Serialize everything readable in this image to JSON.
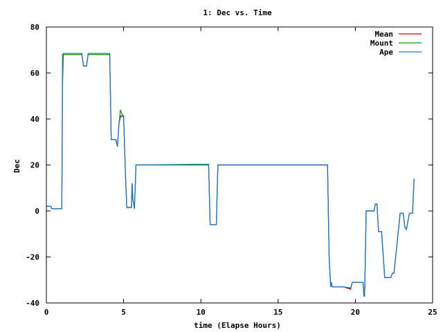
{
  "chart_data": {
    "type": "line",
    "title": "1: Dec vs. Time",
    "xlabel": "time (Elapse Hours)",
    "ylabel": "Dec",
    "xlim": [
      0,
      25
    ],
    "ylim": [
      -40,
      80
    ],
    "xticks": [
      0,
      5,
      10,
      15,
      20,
      25
    ],
    "yticks": [
      -40,
      -20,
      0,
      20,
      40,
      60,
      80
    ],
    "grid": false,
    "legend_position": "top-right",
    "series": [
      {
        "name": "Mean",
        "color": "#cc0000",
        "x": [
          0,
          0.3,
          0.35,
          1.0,
          1.05,
          1.1,
          2.3,
          2.4,
          2.6,
          2.7,
          4.1,
          4.2,
          4.5,
          4.6,
          4.7,
          4.8,
          5.0,
          5.1,
          5.2,
          5.3,
          5.5,
          5.55,
          5.6,
          5.7,
          5.75,
          5.8,
          5.9,
          10.5,
          10.6,
          10.7,
          11.0,
          11.1,
          18.2,
          18.3,
          18.4,
          18.45,
          18.5,
          19.2,
          19.7,
          19.8,
          20.5,
          20.55,
          20.6,
          20.7,
          21.0,
          21.2,
          21.3,
          21.4,
          21.5,
          21.6,
          21.7,
          21.9,
          22.3,
          22.4,
          22.5,
          22.9,
          23.0,
          23.1,
          23.2,
          23.3,
          23.5,
          23.7,
          23.8
        ],
        "y": [
          2,
          2,
          1,
          1,
          68,
          68,
          68,
          63,
          63,
          68,
          68,
          31,
          31,
          28,
          38,
          41,
          41,
          20,
          1.5,
          1.5,
          1.5,
          12,
          5,
          1,
          10,
          20,
          20,
          20,
          -6,
          -6,
          -6,
          20,
          20,
          -20,
          -33,
          -31,
          -33,
          -33,
          -34,
          -31,
          -31,
          -37,
          -37,
          0,
          0,
          0,
          3,
          3,
          -9,
          -9,
          -9,
          -29,
          -29,
          -27,
          -27,
          -1,
          -1,
          -1,
          -7,
          -8,
          -1,
          -1,
          14
        ]
      },
      {
        "name": "Mount",
        "color": "#00a000",
        "x": [
          0,
          0.3,
          0.35,
          1.0,
          1.02,
          1.05,
          1.1,
          2.3,
          2.4,
          2.6,
          2.7,
          4.1,
          4.2,
          4.5,
          4.6,
          4.7,
          4.8,
          4.9,
          5.0,
          5.1,
          5.2,
          5.3,
          5.5,
          5.55,
          5.6,
          5.7,
          5.75,
          5.8,
          5.9,
          9.6,
          10.5,
          10.6,
          10.7,
          11.0,
          11.1,
          18.2,
          18.3,
          18.4,
          18.45,
          18.5,
          19.2,
          19.7,
          19.8,
          20.5,
          20.55,
          20.6,
          20.7,
          21.0,
          21.2,
          21.3,
          21.4,
          21.5,
          21.6,
          21.7,
          21.9,
          22.3,
          22.4,
          22.5,
          22.9,
          23.0,
          23.1,
          23.2,
          23.3,
          23.5,
          23.7,
          23.8
        ],
        "y": [
          2,
          2,
          1,
          1,
          25,
          55,
          68,
          68,
          63,
          63,
          68,
          68,
          31,
          31,
          28,
          38,
          44,
          42,
          41,
          20,
          1.5,
          1.5,
          1.5,
          12,
          5,
          1,
          10,
          20,
          20,
          20.3,
          20.3,
          -6,
          -6,
          -6,
          20,
          20,
          -20,
          -33,
          -31,
          -33,
          -33,
          -33.5,
          -31,
          -31,
          -37,
          -37,
          0,
          0,
          0,
          3,
          3,
          -9,
          -9,
          -9,
          -29,
          -29,
          -27,
          -27,
          -1,
          -1,
          -1,
          -7,
          -8,
          -1,
          -1,
          14
        ]
      },
      {
        "name": "Ape",
        "color": "#1a73e0",
        "x": [
          0,
          0.3,
          0.35,
          1.0,
          1.05,
          1.1,
          2.3,
          2.4,
          2.6,
          2.7,
          4.1,
          4.2,
          4.5,
          4.6,
          4.7,
          4.8,
          5.0,
          5.1,
          5.2,
          5.3,
          5.5,
          5.55,
          5.6,
          5.7,
          5.75,
          5.8,
          5.9,
          10.5,
          10.6,
          10.7,
          11.0,
          11.1,
          18.2,
          18.3,
          18.4,
          18.45,
          18.5,
          19.2,
          19.7,
          19.8,
          20.5,
          20.55,
          20.6,
          20.7,
          21.0,
          21.2,
          21.3,
          21.4,
          21.5,
          21.6,
          21.7,
          21.9,
          22.3,
          22.4,
          22.5,
          22.9,
          23.0,
          23.1,
          23.2,
          23.3,
          23.5,
          23.7,
          23.8
        ],
        "y": [
          2,
          2,
          1,
          1,
          68,
          68.5,
          68.5,
          63,
          63,
          68.5,
          68.5,
          31,
          31,
          28,
          38,
          41.5,
          41.5,
          20,
          1.5,
          1.5,
          1.5,
          12,
          5,
          1,
          10,
          20,
          20,
          20,
          -6,
          -6,
          -6,
          20,
          20,
          -20,
          -33,
          -31,
          -33,
          -33,
          -33.5,
          -31,
          -31,
          -37,
          -37,
          0,
          0,
          0,
          3,
          3,
          -9,
          -9,
          -9,
          -29,
          -29,
          -27,
          -27,
          -1,
          -1,
          -1,
          -7,
          -8,
          -1,
          -1,
          14
        ]
      }
    ]
  }
}
